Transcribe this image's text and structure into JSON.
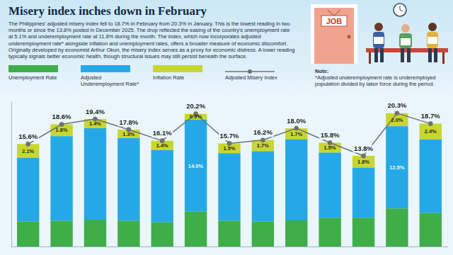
{
  "chart_data": {
    "type": "bar",
    "title": "Misery index inches down in February",
    "subtitle": "The Philippines' adjusted misery index fell to 18.7% in February from 20.3% in January. This is the lowest reading in two months or since the 13.8% posted in December 2025. The drop reflected the easing of the country's unemployment rate at 5.1% and underemployment rate at 11.8% during the month. The index, which now incorporates adjusted underemployment rate* alongside inflation and unemployment rates, offers a broader measure of economic discomfort. Originally developed by economist Arthur Okun, the misery index serves as a proxy for economic distress. A lower reading typically signals better economic health, though structural issues may still persist beneath the surface.",
    "note_title": "Note:",
    "note": "*Adjusted underemployment rate is underemployed population divided by labor force during the period.",
    "categories": [
      null,
      null,
      null,
      null,
      null,
      null,
      null,
      null,
      null,
      null,
      null,
      null,
      null
    ],
    "series": [
      {
        "name": "Unemployment Rate",
        "type": "bar",
        "color": "#3fae49",
        "values": [
          3.8,
          3.9,
          4.1,
          3.9,
          3.7,
          5.3,
          3.9,
          3.8,
          4.0,
          4.4,
          4.4,
          5.8,
          5.1
        ]
      },
      {
        "name": "Adjusted Underemployment Rate*",
        "type": "bar",
        "color": "#25a9e6",
        "values": [
          9.7,
          12.9,
          13.9,
          12.6,
          11.0,
          14.0,
          10.3,
          10.7,
          12.3,
          9.9,
          7.6,
          12.5,
          11.2
        ],
        "data_labels": true,
        "value_labels": [
          null,
          null,
          null,
          null,
          null,
          "14.0%",
          null,
          null,
          null,
          null,
          null,
          "12.5%",
          null
        ]
      },
      {
        "name": "Inflation Rate",
        "type": "bar",
        "color": "#c8d630",
        "values": [
          2.1,
          1.8,
          1.4,
          1.3,
          1.4,
          0.9,
          1.5,
          1.7,
          1.7,
          1.5,
          1.8,
          2.0,
          2.4
        ],
        "data_labels": true,
        "value_labels": [
          "2.1%",
          "1.8%",
          "1.4%",
          "1.3%",
          "1.4%",
          "0.9%",
          "1.5%",
          "1.7%",
          "1.7%",
          "1.5%",
          "1.8%",
          "2.0%",
          "2.4%"
        ]
      },
      {
        "name": "Adjusted Misery Index",
        "type": "line",
        "color": "#6f7275",
        "marker": "circle",
        "line_style": "solid",
        "values": [
          15.6,
          18.6,
          19.4,
          17.8,
          16.1,
          20.2,
          15.7,
          16.2,
          18.0,
          15.8,
          13.8,
          20.3,
          18.7
        ],
        "data_labels": true,
        "value_labels": [
          "15.6%",
          "18.6%",
          "19.4%",
          "17.8%",
          "16.1%",
          "20.2%",
          "15.7%",
          "16.2%",
          "18.0%",
          "15.8%",
          "13.8%",
          "20.3%",
          "18.7%"
        ]
      }
    ],
    "ylim": [
      0,
      22
    ],
    "yticks": [],
    "stacked": true,
    "grid": false,
    "tick_labels": false,
    "legend": "top-left"
  },
  "illustration": {
    "sign": "JOB"
  }
}
